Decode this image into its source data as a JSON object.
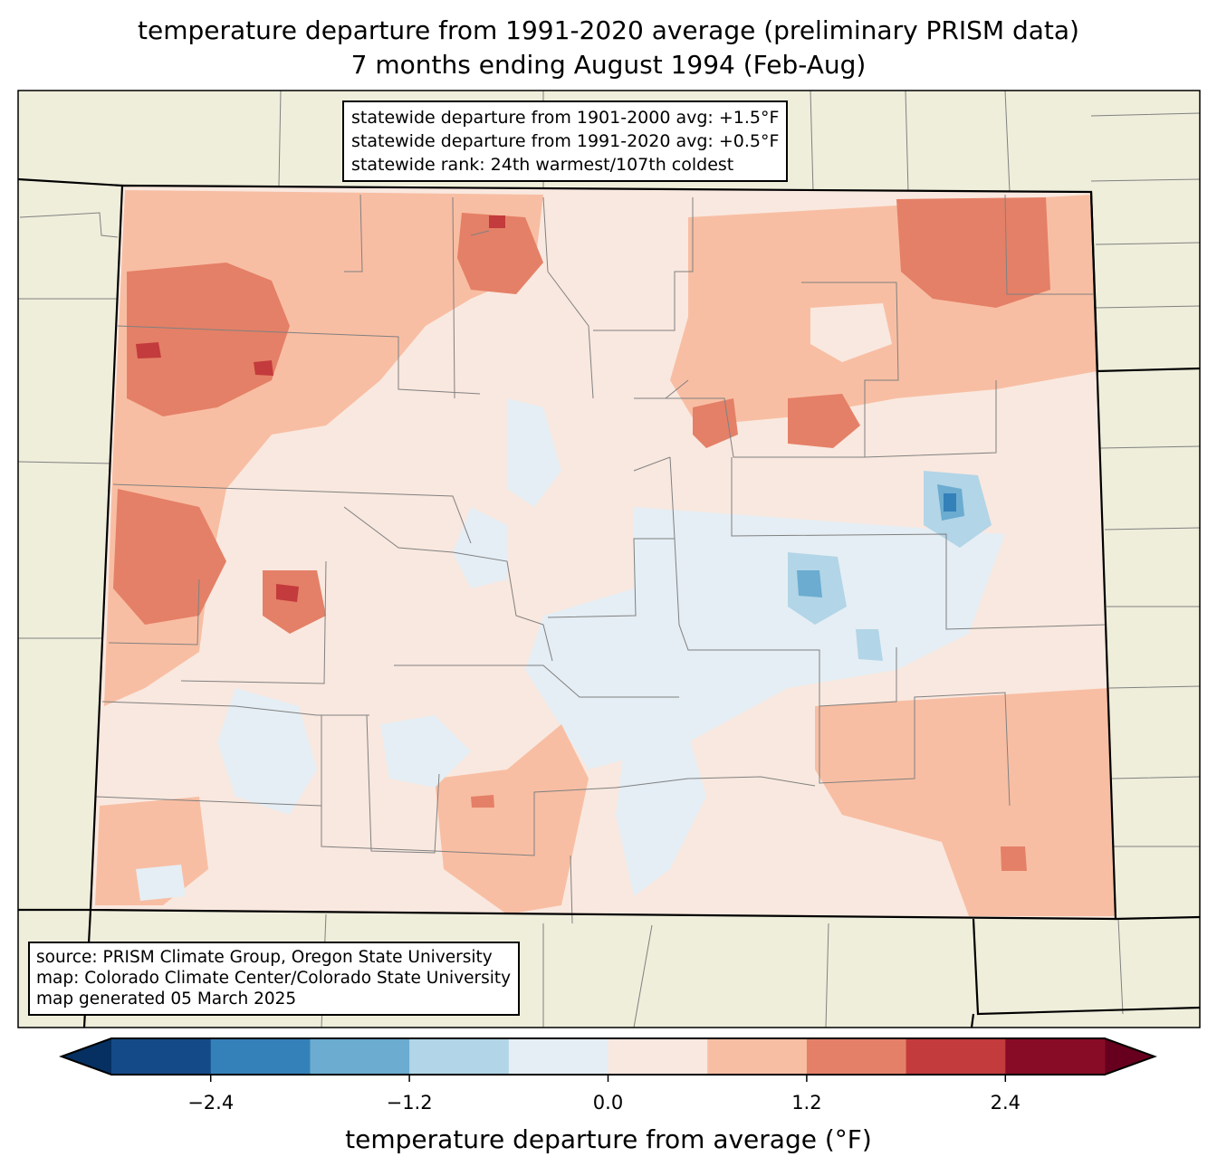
{
  "title": {
    "line1": "temperature departure from 1991-2020 average (preliminary PRISM data)",
    "line2": "7 months ending August 1994 (Feb-Aug)"
  },
  "stats_box": {
    "line1": "statewide departure from 1901-2000 avg: +1.5°F",
    "line2": "statewide departure from 1991-2020 avg: +0.5°F",
    "line3": "statewide rank: 24th warmest/107th coldest"
  },
  "source_box": {
    "line1": "source: PRISM Climate Group, Oregon State University",
    "line2": "map: Colorado Climate Center/Colorado State University",
    "line3": "map generated 05 March 2025"
  },
  "colorbar": {
    "label": "temperature departure from average (°F)",
    "ticks": [
      "−2.4",
      "−1.2",
      "0.0",
      "1.2",
      "2.4"
    ],
    "tick_values": [
      -2.4,
      -1.2,
      0.0,
      1.2,
      2.4
    ],
    "bounds": [
      -3.0,
      -2.4,
      -1.8,
      -1.2,
      -0.6,
      0.0,
      0.6,
      1.2,
      1.8,
      2.4,
      3.0
    ],
    "colors": [
      "#144a87",
      "#3480b9",
      "#6bacd0",
      "#b2d5e7",
      "#e5eef4",
      "#f9e8df",
      "#f8bea3",
      "#e48067",
      "#c33b3c",
      "#880c26"
    ],
    "under_color": "#053061",
    "over_color": "#67001f"
  },
  "map_colors": {
    "land": "#efeedb",
    "county_line": "#808080",
    "state_line": "#000000"
  }
}
